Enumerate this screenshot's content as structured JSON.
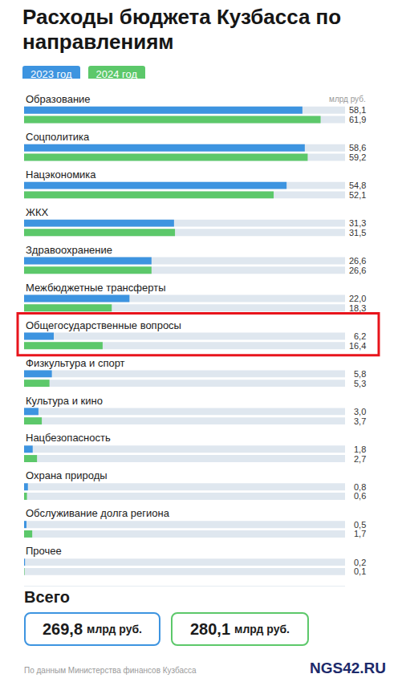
{
  "chart_data": {
    "type": "bar",
    "title": "Расходы бюджета Кузбасса по направлениям",
    "xlabel": "млрд руб.",
    "orientation": "horizontal",
    "legend": "top-left",
    "data_labels": true,
    "grid": false,
    "xlim": [
      0,
      67
    ],
    "xticks": [],
    "categories": [
      "Образование",
      "Соцполитика",
      "Нацэкономика",
      "ЖКХ",
      "Здравоохранение",
      "Межбюджетные трансферты",
      "Общегосударственные вопросы",
      "Физкультура и спорт",
      "Культура и кино",
      "Нацбезопасность",
      "Охрана природы",
      "Обслуживание долга региона",
      "Прочее"
    ],
    "series": [
      {
        "name": "2023 год",
        "color": "#3d94e0",
        "values": [
          58.1,
          58.6,
          54.8,
          31.3,
          26.6,
          22.0,
          6.2,
          5.8,
          3.0,
          1.8,
          0.8,
          0.5,
          0.2
        ],
        "value_labels": [
          "58,1",
          "58,6",
          "54,8",
          "31,3",
          "26,6",
          "22,0",
          "6,2",
          "5,8",
          "3,0",
          "1,8",
          "0,8",
          "0,5",
          "0,2"
        ]
      },
      {
        "name": "2024 год",
        "color": "#5cc86a",
        "values": [
          61.9,
          59.2,
          52.1,
          31.5,
          26.6,
          18.3,
          16.4,
          5.3,
          3.7,
          2.7,
          0.6,
          1.7,
          0.1
        ],
        "value_labels": [
          "61,9",
          "59,2",
          "52,1",
          "31,5",
          "26,6",
          "18,3",
          "16,4",
          "5,3",
          "3,7",
          "2,7",
          "0,6",
          "1,7",
          "0,1"
        ]
      }
    ]
  },
  "totals": {
    "title": "Всего",
    "items": [
      {
        "name": "2023 год",
        "value": 269.8,
        "label": "269,8",
        "unit": "млрд руб."
      },
      {
        "name": "2024 год",
        "value": 280.1,
        "label": "280,1",
        "unit": "млрд руб."
      }
    ]
  },
  "source": "По данным Министерства финансов Кузбасса",
  "logo": "NGS42.RU"
}
